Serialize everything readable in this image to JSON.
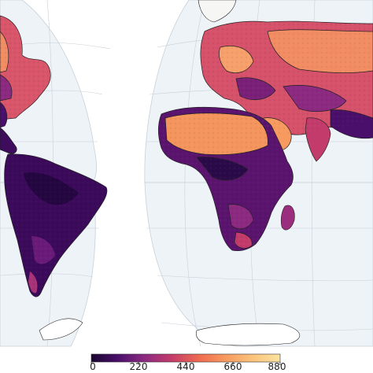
{
  "map": {
    "projection": "interrupted-goode-homolosine",
    "ocean_color": "#eef3f8",
    "graticule_color": "#c8d0d8",
    "coastline_color": "#222222",
    "variable_colormap": "magma-like",
    "low_value_color": "#2b0a4a",
    "mid_value_color": "#c23b6b",
    "high_value_color": "#f7d08a"
  },
  "colorbar": {
    "ticks": [
      "0",
      "220",
      "440",
      "660",
      "880"
    ],
    "min": 0,
    "max": 880,
    "colors": [
      "#1a0530",
      "#4a0f6b",
      "#8c2981",
      "#c23b6b",
      "#ef6b50",
      "#f79a60",
      "#fbc27a",
      "#fbe3a0"
    ]
  }
}
